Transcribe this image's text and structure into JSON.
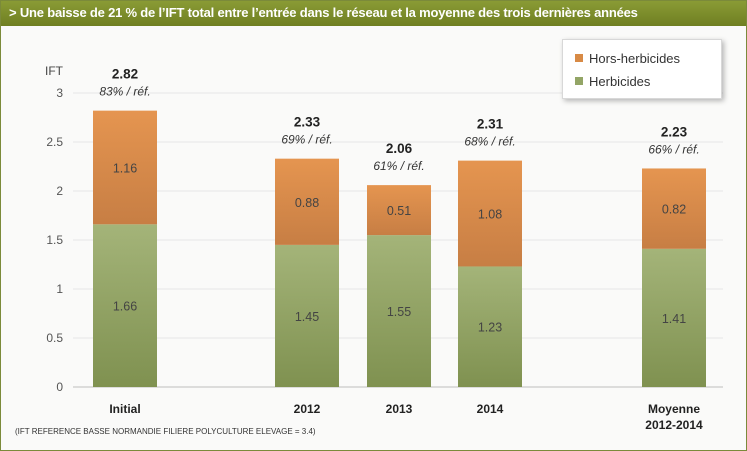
{
  "title": "Une baisse de 21 % de l’IFT total entre l’entrée dans le réseau et la moyenne des trois dernières années",
  "title_marker": ">",
  "footnote": "(IFT REFERENCE BASSE NORMANDIE FILIERE POLYCULTURE ELEVAGE = 3.4)",
  "colors": {
    "herbicides": "#93a566",
    "hors_herbicides": "#d88a45",
    "title_bar": "#7d8e2e"
  },
  "chart_data": {
    "type": "bar",
    "stacked": true,
    "title": "",
    "xlabel": "",
    "ylabel": "IFT",
    "ylim": [
      0,
      3
    ],
    "yticks": [
      "0",
      "0.5",
      "1",
      "1.5",
      "2",
      "2.5",
      "3"
    ],
    "grid": true,
    "legend_position": "top-right",
    "categories": [
      "Initial",
      "2012",
      "2013",
      "2014",
      "Moyenne\n2012-2014"
    ],
    "series": [
      {
        "name": "Herbicides",
        "values": [
          1.66,
          1.45,
          1.55,
          1.23,
          1.41
        ],
        "labels": [
          "1.66",
          "1.45",
          "1.55",
          "1.23",
          "1.41"
        ]
      },
      {
        "name": "Hors-herbicides",
        "values": [
          1.16,
          0.88,
          0.51,
          1.08,
          0.82
        ],
        "labels": [
          "1.16",
          "0.88",
          "0.51",
          "1.08",
          "0.82"
        ]
      }
    ],
    "totals": [
      "2.82",
      "2.33",
      "2.06",
      "2.31",
      "2.23"
    ],
    "total_values": [
      2.82,
      2.33,
      2.06,
      2.31,
      2.23
    ],
    "percent_labels": [
      "83% / réf.",
      "69% / réf.",
      "61% / réf.",
      "68% / réf.",
      "66% / réf."
    ]
  }
}
